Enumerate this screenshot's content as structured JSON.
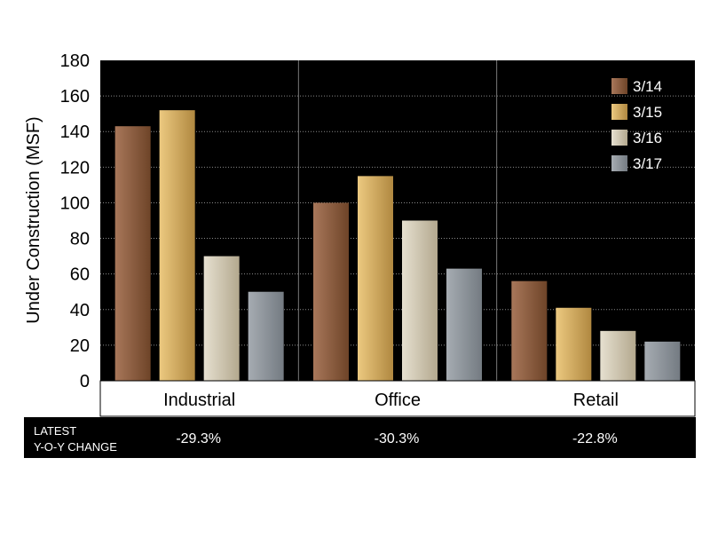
{
  "chart_data": {
    "type": "bar",
    "ylabel": "Under Construction (MSF)",
    "ylim": [
      0,
      180
    ],
    "yticks": [
      0,
      20,
      40,
      60,
      80,
      100,
      120,
      140,
      160,
      180
    ],
    "grid": true,
    "legend_position": "top-right",
    "categories": [
      "Industrial",
      "Office",
      "Retail"
    ],
    "series": [
      {
        "name": "3/14",
        "values": [
          143,
          100,
          56
        ]
      },
      {
        "name": "3/15",
        "values": [
          152,
          115,
          41
        ]
      },
      {
        "name": "3/16",
        "values": [
          70,
          90,
          28
        ]
      },
      {
        "name": "3/17",
        "values": [
          50,
          63,
          22
        ]
      }
    ],
    "series_colors": [
      [
        "#a8775a",
        "#6e4428"
      ],
      [
        "#ecc980",
        "#b08840"
      ],
      [
        "#e6e0d0",
        "#b3a88e"
      ],
      [
        "#a6acb2",
        "#747b82"
      ]
    ],
    "footer": {
      "label_line1": "LATEST",
      "label_line2": "Y-O-Y CHANGE",
      "changes": [
        "-29.3%",
        "-30.3%",
        "-22.8%"
      ]
    }
  }
}
